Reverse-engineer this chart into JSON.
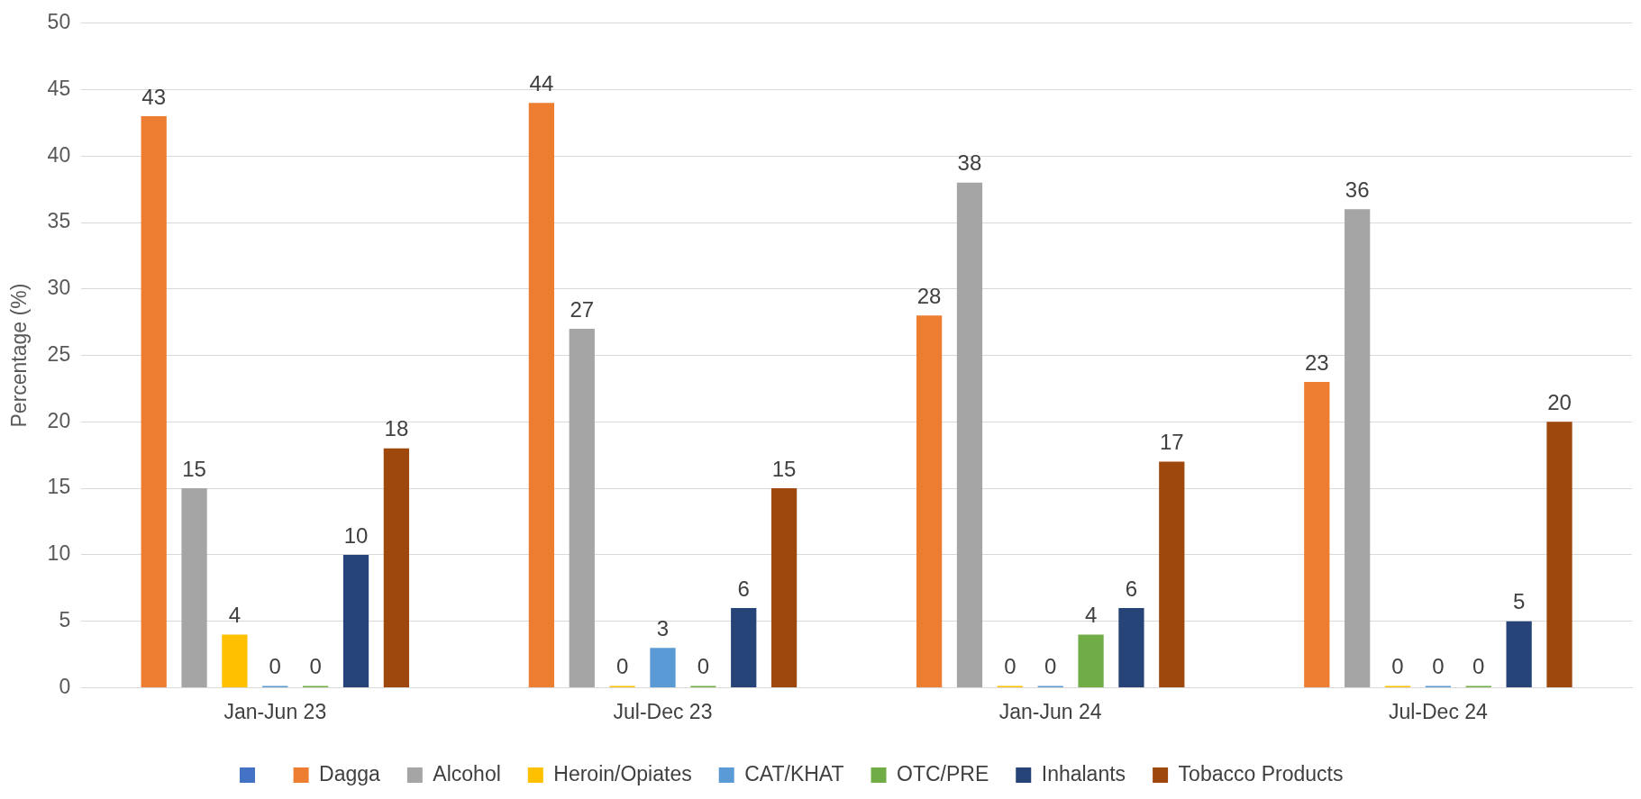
{
  "chart_data": {
    "type": "bar",
    "ylabel": "Percentage (%)",
    "categories": [
      "Jan-Jun 23",
      "Jul-Dec 23",
      "Jan-Jun 24",
      "Jul-Dec 24"
    ],
    "series": [
      {
        "name": "Dagga",
        "color": "#ed7d31",
        "values": [
          43,
          44,
          28,
          23
        ]
      },
      {
        "name": "Alcohol",
        "color": "#a5a5a5",
        "values": [
          15,
          27,
          38,
          36
        ]
      },
      {
        "name": "Heroin/Opiates",
        "color": "#ffc000",
        "values": [
          4,
          0,
          0,
          0
        ]
      },
      {
        "name": "CAT/KHAT",
        "color": "#5b9bd5",
        "values": [
          0,
          3,
          0,
          0
        ]
      },
      {
        "name": "OTC/PRE",
        "color": "#70ad47",
        "values": [
          0,
          0,
          4,
          0
        ]
      },
      {
        "name": "Inhalants",
        "color": "#264478",
        "values": [
          10,
          6,
          6,
          5
        ]
      },
      {
        "name": "Tobacco Products",
        "color": "#9e480e",
        "values": [
          18,
          15,
          17,
          20
        ]
      }
    ],
    "ylim": [
      0,
      50
    ],
    "yticks": [
      0,
      5,
      10,
      15,
      20,
      25,
      30,
      35,
      40,
      45,
      50
    ],
    "grid": "y",
    "legend": "bottom",
    "data_labels": true
  }
}
